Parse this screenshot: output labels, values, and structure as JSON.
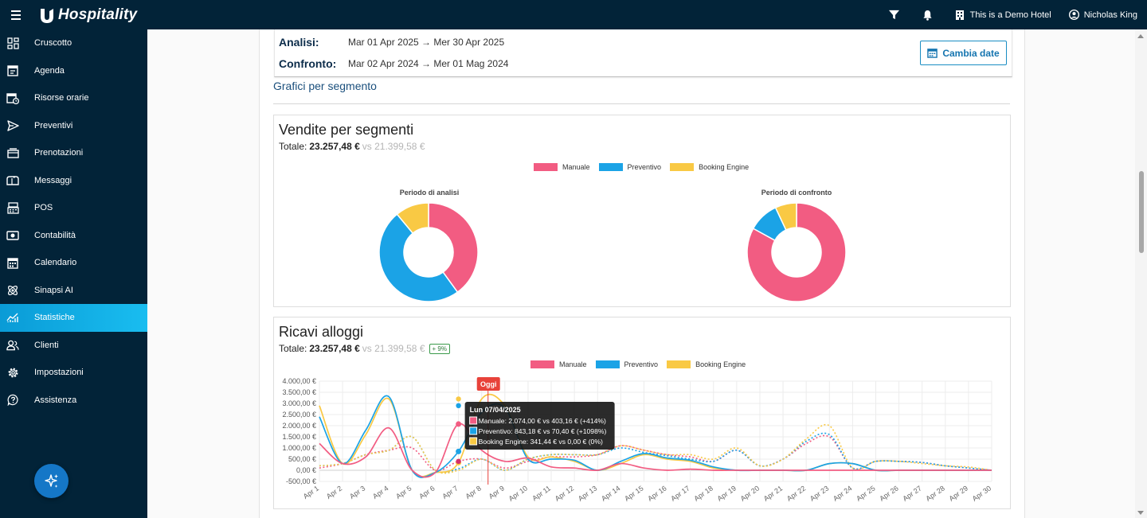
{
  "app": {
    "brand": "Hospitality"
  },
  "topbar": {
    "hotel": "This is a Demo Hotel",
    "user": "Nicholas King"
  },
  "sidebar": {
    "items": [
      {
        "label": "Cruscotto",
        "icon": "dashboard-icon"
      },
      {
        "label": "Agenda",
        "icon": "agenda-icon"
      },
      {
        "label": "Risorse orarie",
        "icon": "calendar-clock-icon"
      },
      {
        "label": "Preventivi",
        "icon": "send-icon"
      },
      {
        "label": "Prenotazioni",
        "icon": "bookings-icon"
      },
      {
        "label": "Messaggi",
        "icon": "mailbox-icon"
      },
      {
        "label": "POS",
        "icon": "pos-icon"
      },
      {
        "label": "Contabilità",
        "icon": "money-icon"
      },
      {
        "label": "Calendario",
        "icon": "calendar-icon"
      },
      {
        "label": "Sinapsi AI",
        "icon": "atom-icon"
      },
      {
        "label": "Statistiche",
        "icon": "stats-icon",
        "active": true
      },
      {
        "label": "Clienti",
        "icon": "users-icon"
      },
      {
        "label": "Impostazioni",
        "icon": "gear-icon"
      },
      {
        "label": "Assistenza",
        "icon": "help-icon"
      }
    ]
  },
  "dates": {
    "analysis_label": "Analisi:",
    "analysis_value": "Mar 01 Apr 2025 → Mer 30 Apr 2025",
    "compare_label": "Confronto:",
    "compare_value": "Mar 02 Apr 2024 → Mer 01 Mag 2024",
    "change_button": "Cambia date"
  },
  "section_title": "Grafici per segmento",
  "colors": {
    "manuale": "#f25c82",
    "preventivo": "#1ba3e6",
    "booking": "#f9c944"
  },
  "vendite": {
    "title": "Vendite per segmenti",
    "total_label": "Totale:",
    "total": "23.257,48 €",
    "vs": "vs 21.399,58 €",
    "legend": [
      "Manuale",
      "Preventivo",
      "Booking Engine"
    ],
    "left_title": "Periodo di analisi",
    "right_title": "Periodo di confronto"
  },
  "ricavi": {
    "title": "Ricavi alloggi",
    "total_label": "Totale:",
    "total": "23.257,48 €",
    "vs": "vs 21.399,58 €",
    "badge": "+ 9%",
    "legend": [
      "Manuale",
      "Preventivo",
      "Booking Engine"
    ],
    "today_label": "Oggi",
    "tooltip": {
      "title": "Lun 07/04/2025",
      "lines": [
        "Manuale: 2.074,00 € vs 403,16 € (+414%)",
        "Preventivo: 843,18 € vs 70,40 € (+1098%)",
        "Booking Engine: 341,44 € vs 0,00 € (0%)"
      ]
    }
  },
  "chart_data": [
    {
      "type": "pie",
      "title": "Periodo di analisi",
      "categories": [
        "Manuale",
        "Preventivo",
        "Booking Engine"
      ],
      "values": [
        40,
        49,
        11
      ]
    },
    {
      "type": "pie",
      "title": "Periodo di confronto",
      "categories": [
        "Manuale",
        "Preventivo",
        "Booking Engine"
      ],
      "values": [
        83,
        10,
        7
      ]
    },
    {
      "type": "line",
      "title": "Ricavi alloggi",
      "x": [
        "Apr 1",
        "Apr 2",
        "Apr 3",
        "Apr 4",
        "Apr 5",
        "Apr 6",
        "Apr 7",
        "Apr 8",
        "Apr 9",
        "Apr 10",
        "Apr 11",
        "Apr 12",
        "Apr 13",
        "Apr 14",
        "Apr 15",
        "Apr 16",
        "Apr 17",
        "Apr 18",
        "Apr 19",
        "Apr 20",
        "Apr 21",
        "Apr 22",
        "Apr 23",
        "Apr 24",
        "Apr 25",
        "Apr 26",
        "Apr 27",
        "Apr 28",
        "Apr 29",
        "Apr 30"
      ],
      "yticks": [
        "4.000,00 €",
        "3.500,00 €",
        "3.000,00 €",
        "2.500,00 €",
        "2.000,00 €",
        "1.500,00 €",
        "1.000,00 €",
        "500,00 €",
        "0,00 €",
        "-500,00 €"
      ],
      "ylim": [
        -500,
        4000
      ],
      "series": [
        {
          "name": "Manuale",
          "style": "solid",
          "values": [
            1200,
            300,
            600,
            1900,
            0,
            -100,
            2074,
            900,
            400,
            550,
            150,
            100,
            0,
            300,
            100,
            0,
            50,
            0,
            0,
            0,
            0,
            0,
            0,
            0,
            0,
            0,
            0,
            0,
            0,
            0
          ]
        },
        {
          "name": "Preventivo",
          "style": "solid",
          "values": [
            2400,
            300,
            1800,
            3300,
            0,
            -100,
            843,
            2600,
            2800,
            500,
            500,
            450,
            0,
            400,
            750,
            550,
            450,
            150,
            0,
            0,
            0,
            0,
            300,
            300,
            0,
            0,
            0,
            0,
            0,
            0
          ]
        },
        {
          "name": "Booking Engine",
          "style": "solid",
          "values": [
            2900,
            300,
            1600,
            3200,
            0,
            -100,
            341,
            3200,
            2900,
            600,
            600,
            400,
            0,
            300,
            700,
            500,
            400,
            100,
            0,
            0,
            0,
            0,
            300,
            300,
            0,
            0,
            0,
            0,
            0,
            0
          ]
        },
        {
          "name": "Manuale (confronto)",
          "style": "dotted",
          "values": [
            100,
            300,
            700,
            900,
            1000,
            0,
            403,
            500,
            100,
            400,
            600,
            600,
            700,
            1100,
            900,
            700,
            600,
            400,
            900,
            200,
            500,
            1200,
            1500,
            100,
            400,
            400,
            350,
            200,
            100,
            0
          ]
        },
        {
          "name": "Preventivo (confronto)",
          "style": "dotted",
          "values": [
            200,
            300,
            700,
            900,
            1500,
            0,
            70,
            500,
            0,
            500,
            700,
            700,
            700,
            1000,
            800,
            650,
            500,
            400,
            900,
            200,
            500,
            1300,
            1600,
            100,
            400,
            400,
            350,
            200,
            100,
            0
          ]
        },
        {
          "name": "Booking Engine (confronto)",
          "style": "dotted",
          "values": [
            200,
            300,
            700,
            900,
            1500,
            0,
            0,
            500,
            0,
            500,
            700,
            700,
            700,
            1100,
            900,
            700,
            700,
            500,
            1000,
            200,
            500,
            1400,
            2000,
            100,
            400,
            400,
            300,
            200,
            150,
            0
          ]
        }
      ],
      "today_marker": "Apr 8"
    }
  ]
}
